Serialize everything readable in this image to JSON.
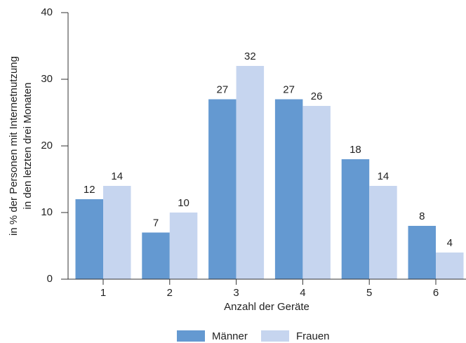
{
  "chart_data": {
    "type": "bar",
    "categories": [
      "1",
      "2",
      "3",
      "4",
      "5",
      "6"
    ],
    "series": [
      {
        "name": "Männer",
        "color": "#6499d1",
        "values": [
          12,
          7,
          27,
          27,
          18,
          8
        ]
      },
      {
        "name": "Frauen",
        "color": "#c6d5ef",
        "values": [
          14,
          10,
          32,
          26,
          14,
          4
        ]
      }
    ],
    "xlabel": "Anzahl der Geräte",
    "ylabel": [
      "in % der  Personen mit Internetnutzung",
      "in den letzten drei Monaten"
    ],
    "ylim": [
      0,
      40
    ],
    "yticks": [
      0,
      10,
      20,
      30,
      40
    ],
    "legend": "bottom"
  }
}
